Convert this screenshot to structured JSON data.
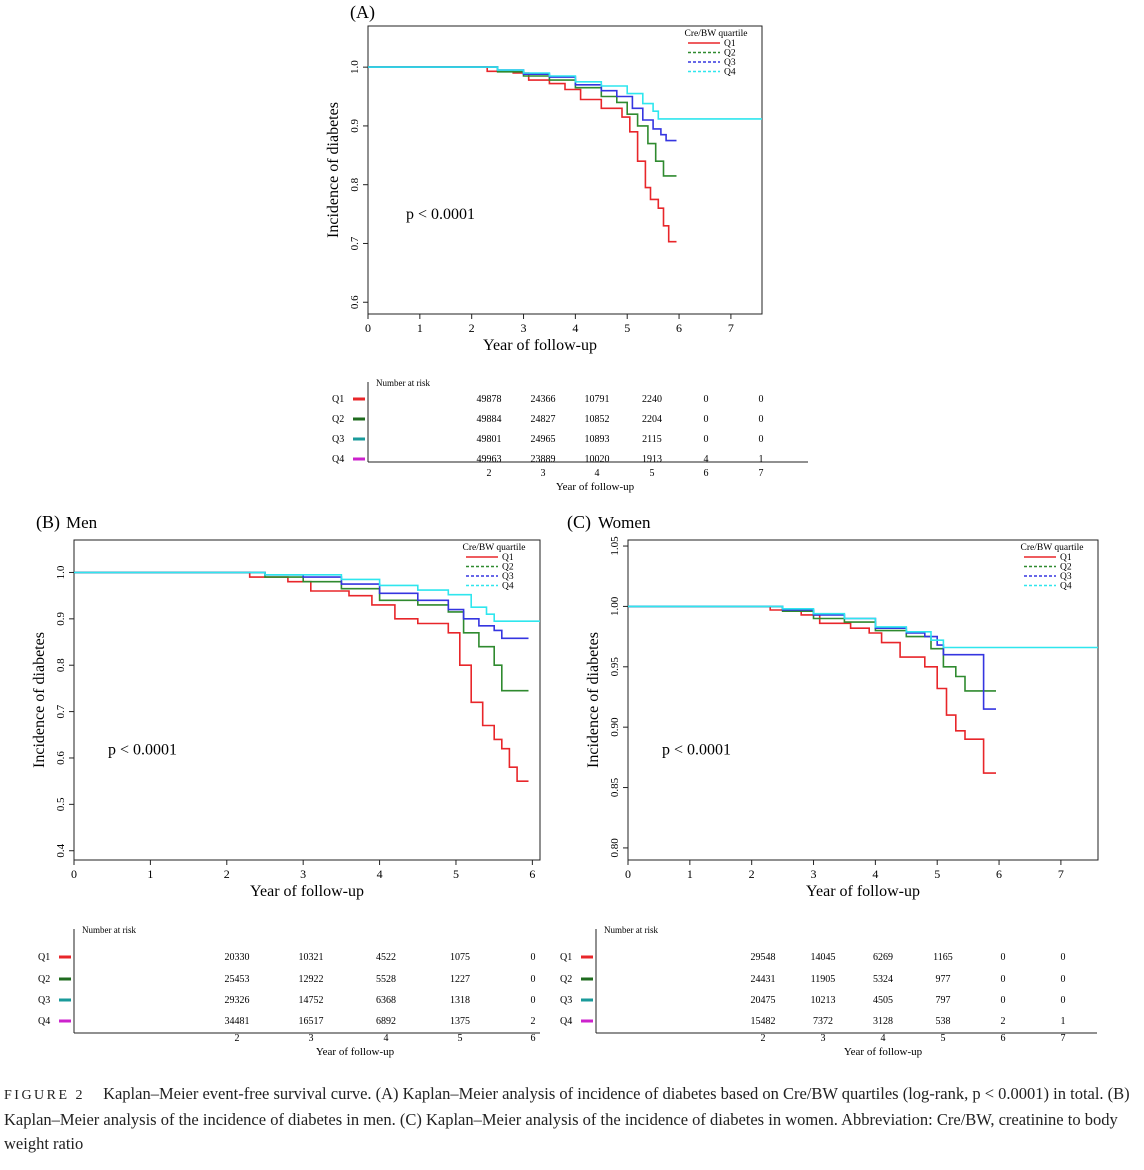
{
  "caption": {
    "label": "FIGURE 2",
    "text": "Kaplan–Meier event-free survival curve. (A) Kaplan–Meier analysis of incidence of diabetes based on Cre/BW quartiles (log-rank, p < 0.0001) in total. (B) Kaplan–Meier analysis of the incidence of diabetes in men. (C) Kaplan–Meier analysis of the incidence of diabetes in women. Abbreviation: Cre/BW, creatinine to body weight ratio"
  },
  "colors": {
    "Q1": "#e8262a",
    "Q2": "#2f8a2f",
    "Q3": "#3535e0",
    "Q4": "#2fe6ee"
  },
  "risk_marker_colors": {
    "Q1": "#e8262a",
    "Q2": "#1f6b1f",
    "Q3": "#1a9a9a",
    "Q4": "#cc22cc"
  },
  "chart_data": [
    {
      "panel": "(A)",
      "subtitle": "",
      "type": "line",
      "xlabel": "Year of follow-up",
      "ylabel": "Incidence of diabetes",
      "xlim": [
        0,
        7.6
      ],
      "ylim": [
        0.58,
        1.07
      ],
      "xticks": [
        "0",
        "1",
        "2",
        "3",
        "4",
        "5",
        "6",
        "7"
      ],
      "yticks": [
        "0.6",
        "0.7",
        "0.8",
        "0.9",
        "1.0"
      ],
      "ytick_values": [
        0.6,
        0.7,
        0.8,
        0.9,
        1.0
      ],
      "legend": {
        "title": "Cre/BW quartile",
        "entries": [
          "Q1",
          "Q2",
          "Q3",
          "Q4"
        ],
        "position": "top-right"
      },
      "annotation": "p < 0.0001",
      "series": [
        {
          "name": "Q1",
          "points": [
            [
              0,
              1.0
            ],
            [
              2,
              1.0
            ],
            [
              2.3,
              0.993
            ],
            [
              2.8,
              0.99
            ],
            [
              3.1,
              0.978
            ],
            [
              3.5,
              0.972
            ],
            [
              3.8,
              0.962
            ],
            [
              4.1,
              0.945
            ],
            [
              4.5,
              0.93
            ],
            [
              4.9,
              0.915
            ],
            [
              5.05,
              0.89
            ],
            [
              5.2,
              0.84
            ],
            [
              5.35,
              0.795
            ],
            [
              5.45,
              0.775
            ],
            [
              5.6,
              0.76
            ],
            [
              5.7,
              0.73
            ],
            [
              5.8,
              0.703
            ],
            [
              5.95,
              0.703
            ]
          ]
        },
        {
          "name": "Q2",
          "points": [
            [
              0,
              1.0
            ],
            [
              2,
              1.0
            ],
            [
              2.5,
              0.992
            ],
            [
              3,
              0.985
            ],
            [
              3.5,
              0.978
            ],
            [
              4,
              0.965
            ],
            [
              4.5,
              0.95
            ],
            [
              4.8,
              0.94
            ],
            [
              5,
              0.92
            ],
            [
              5.2,
              0.9
            ],
            [
              5.4,
              0.87
            ],
            [
              5.55,
              0.84
            ],
            [
              5.7,
              0.815
            ],
            [
              5.95,
              0.815
            ]
          ]
        },
        {
          "name": "Q3",
          "points": [
            [
              0,
              1.0
            ],
            [
              2,
              1.0
            ],
            [
              2.5,
              0.995
            ],
            [
              3,
              0.988
            ],
            [
              3.5,
              0.983
            ],
            [
              4,
              0.97
            ],
            [
              4.5,
              0.96
            ],
            [
              4.8,
              0.95
            ],
            [
              5.1,
              0.93
            ],
            [
              5.3,
              0.91
            ],
            [
              5.5,
              0.895
            ],
            [
              5.65,
              0.885
            ],
            [
              5.75,
              0.875
            ],
            [
              5.95,
              0.875
            ]
          ]
        },
        {
          "name": "Q4",
          "points": [
            [
              0,
              1.0
            ],
            [
              2,
              1.0
            ],
            [
              2.5,
              0.995
            ],
            [
              3,
              0.99
            ],
            [
              3.5,
              0.985
            ],
            [
              4,
              0.975
            ],
            [
              4.5,
              0.968
            ],
            [
              5,
              0.955
            ],
            [
              5.3,
              0.938
            ],
            [
              5.5,
              0.925
            ],
            [
              5.6,
              0.912
            ],
            [
              7.6,
              0.912
            ]
          ]
        }
      ],
      "risk_table": {
        "header": "Number at risk",
        "x": [
          "2",
          "3",
          "4",
          "5",
          "6",
          "7"
        ],
        "rows": [
          {
            "group": "Q1",
            "values": [
              "49878",
              "24366",
              "10791",
              "2240",
              "0",
              "0"
            ]
          },
          {
            "group": "Q2",
            "values": [
              "49884",
              "24827",
              "10852",
              "2204",
              "0",
              "0"
            ]
          },
          {
            "group": "Q3",
            "values": [
              "49801",
              "24965",
              "10893",
              "2115",
              "0",
              "0"
            ]
          },
          {
            "group": "Q4",
            "values": [
              "49963",
              "23889",
              "10020",
              "1913",
              "4",
              "1"
            ]
          }
        ],
        "xlabel": "Year of follow-up"
      }
    },
    {
      "panel": "(B)",
      "subtitle": "Men",
      "type": "line",
      "xlabel": "Year of follow-up",
      "ylabel": "Incidence of diabetes",
      "xlim": [
        0,
        6.1
      ],
      "ylim": [
        0.38,
        1.07
      ],
      "xticks": [
        "0",
        "1",
        "2",
        "3",
        "4",
        "5",
        "6"
      ],
      "yticks": [
        "0.4",
        "0.5",
        "0.6",
        "0.7",
        "0.8",
        "0.9",
        "1.0"
      ],
      "ytick_values": [
        0.4,
        0.5,
        0.6,
        0.7,
        0.8,
        0.9,
        1.0
      ],
      "legend": {
        "title": "Cre/BW quartile",
        "entries": [
          "Q1",
          "Q2",
          "Q3",
          "Q4"
        ],
        "position": "top-right"
      },
      "annotation": "p < 0.0001",
      "series": [
        {
          "name": "Q1",
          "points": [
            [
              0,
              1.0
            ],
            [
              2,
              1.0
            ],
            [
              2.3,
              0.99
            ],
            [
              2.8,
              0.98
            ],
            [
              3.1,
              0.96
            ],
            [
              3.6,
              0.95
            ],
            [
              3.9,
              0.93
            ],
            [
              4.2,
              0.9
            ],
            [
              4.5,
              0.89
            ],
            [
              4.9,
              0.87
            ],
            [
              5.05,
              0.8
            ],
            [
              5.2,
              0.72
            ],
            [
              5.35,
              0.67
            ],
            [
              5.5,
              0.64
            ],
            [
              5.6,
              0.62
            ],
            [
              5.7,
              0.58
            ],
            [
              5.8,
              0.55
            ],
            [
              5.95,
              0.55
            ]
          ]
        },
        {
          "name": "Q2",
          "points": [
            [
              0,
              1.0
            ],
            [
              2,
              1.0
            ],
            [
              2.5,
              0.99
            ],
            [
              3,
              0.98
            ],
            [
              3.5,
              0.965
            ],
            [
              4,
              0.94
            ],
            [
              4.5,
              0.93
            ],
            [
              4.9,
              0.915
            ],
            [
              5.1,
              0.87
            ],
            [
              5.3,
              0.84
            ],
            [
              5.5,
              0.8
            ],
            [
              5.6,
              0.745
            ],
            [
              5.95,
              0.745
            ]
          ]
        },
        {
          "name": "Q3",
          "points": [
            [
              0,
              1.0
            ],
            [
              2,
              1.0
            ],
            [
              2.5,
              0.995
            ],
            [
              3,
              0.99
            ],
            [
              3.5,
              0.975
            ],
            [
              4,
              0.955
            ],
            [
              4.5,
              0.94
            ],
            [
              4.9,
              0.92
            ],
            [
              5.1,
              0.9
            ],
            [
              5.3,
              0.885
            ],
            [
              5.5,
              0.875
            ],
            [
              5.6,
              0.858
            ],
            [
              5.95,
              0.858
            ]
          ]
        },
        {
          "name": "Q4",
          "points": [
            [
              0,
              1.0
            ],
            [
              2,
              1.0
            ],
            [
              2.5,
              0.995
            ],
            [
              3,
              0.995
            ],
            [
              3.5,
              0.985
            ],
            [
              4,
              0.972
            ],
            [
              4.5,
              0.962
            ],
            [
              4.9,
              0.952
            ],
            [
              5.2,
              0.925
            ],
            [
              5.4,
              0.91
            ],
            [
              5.5,
              0.895
            ],
            [
              6.1,
              0.895
            ]
          ]
        }
      ],
      "risk_table": {
        "header": "Number at risk",
        "x": [
          "2",
          "3",
          "4",
          "5",
          "6"
        ],
        "rows": [
          {
            "group": "Q1",
            "values": [
              "20330",
              "10321",
              "4522",
              "1075",
              "0"
            ]
          },
          {
            "group": "Q2",
            "values": [
              "25453",
              "12922",
              "5528",
              "1227",
              "0"
            ]
          },
          {
            "group": "Q3",
            "values": [
              "29326",
              "14752",
              "6368",
              "1318",
              "0"
            ]
          },
          {
            "group": "Q4",
            "values": [
              "34481",
              "16517",
              "6892",
              "1375",
              "2"
            ]
          }
        ],
        "xlabel": "Year of follow-up"
      }
    },
    {
      "panel": "(C)",
      "subtitle": "Women",
      "type": "line",
      "xlabel": "Year of follow-up",
      "ylabel": "Incidence of diabetes",
      "xlim": [
        0,
        7.6
      ],
      "ylim": [
        0.79,
        1.055
      ],
      "xticks": [
        "0",
        "1",
        "2",
        "3",
        "4",
        "5",
        "6",
        "7"
      ],
      "yticks": [
        "0.80",
        "0.85",
        "0.90",
        "0.95",
        "1.00",
        "1.05"
      ],
      "ytick_values": [
        0.8,
        0.85,
        0.9,
        0.95,
        1.0,
        1.05
      ],
      "legend": {
        "title": "Cre/BW quartile",
        "entries": [
          "Q1",
          "Q2",
          "Q3",
          "Q4"
        ],
        "position": "top-right"
      },
      "annotation": "p < 0.0001",
      "series": [
        {
          "name": "Q1",
          "points": [
            [
              0,
              1.0
            ],
            [
              2,
              1.0
            ],
            [
              2.3,
              0.997
            ],
            [
              2.8,
              0.993
            ],
            [
              3.1,
              0.986
            ],
            [
              3.6,
              0.982
            ],
            [
              3.9,
              0.978
            ],
            [
              4.1,
              0.97
            ],
            [
              4.4,
              0.958
            ],
            [
              4.8,
              0.95
            ],
            [
              5,
              0.932
            ],
            [
              5.15,
              0.91
            ],
            [
              5.3,
              0.897
            ],
            [
              5.45,
              0.89
            ],
            [
              5.75,
              0.89
            ],
            [
              5.75,
              0.862
            ],
            [
              5.95,
              0.862
            ]
          ]
        },
        {
          "name": "Q2",
          "points": [
            [
              0,
              1.0
            ],
            [
              2,
              1.0
            ],
            [
              2.5,
              0.996
            ],
            [
              3,
              0.99
            ],
            [
              3.5,
              0.987
            ],
            [
              4,
              0.98
            ],
            [
              4.5,
              0.975
            ],
            [
              4.9,
              0.965
            ],
            [
              5.1,
              0.95
            ],
            [
              5.3,
              0.942
            ],
            [
              5.45,
              0.93
            ],
            [
              5.95,
              0.93
            ]
          ]
        },
        {
          "name": "Q3",
          "points": [
            [
              0,
              1.0
            ],
            [
              2,
              1.0
            ],
            [
              2.5,
              0.997
            ],
            [
              3,
              0.993
            ],
            [
              3.5,
              0.99
            ],
            [
              4,
              0.982
            ],
            [
              4.5,
              0.978
            ],
            [
              4.8,
              0.975
            ],
            [
              5,
              0.968
            ],
            [
              5.1,
              0.96
            ],
            [
              5.6,
              0.96
            ],
            [
              5.75,
              0.915
            ],
            [
              5.95,
              0.915
            ]
          ]
        },
        {
          "name": "Q4",
          "points": [
            [
              0,
              1.0
            ],
            [
              2,
              1.0
            ],
            [
              2.5,
              0.998
            ],
            [
              3,
              0.994
            ],
            [
              3.5,
              0.99
            ],
            [
              4,
              0.983
            ],
            [
              4.5,
              0.979
            ],
            [
              4.9,
              0.972
            ],
            [
              5.1,
              0.966
            ],
            [
              7.6,
              0.966
            ]
          ]
        }
      ],
      "risk_table": {
        "header": "Number at risk",
        "x": [
          "2",
          "3",
          "4",
          "5",
          "6",
          "7"
        ],
        "rows": [
          {
            "group": "Q1",
            "values": [
              "29548",
              "14045",
              "6269",
              "1165",
              "0",
              "0"
            ]
          },
          {
            "group": "Q2",
            "values": [
              "24431",
              "11905",
              "5324",
              "977",
              "0",
              "0"
            ]
          },
          {
            "group": "Q3",
            "values": [
              "20475",
              "10213",
              "4505",
              "797",
              "0",
              "0"
            ]
          },
          {
            "group": "Q4",
            "values": [
              "15482",
              "7372",
              "3128",
              "538",
              "2",
              "1"
            ]
          }
        ],
        "xlabel": "Year of follow-up"
      }
    }
  ]
}
